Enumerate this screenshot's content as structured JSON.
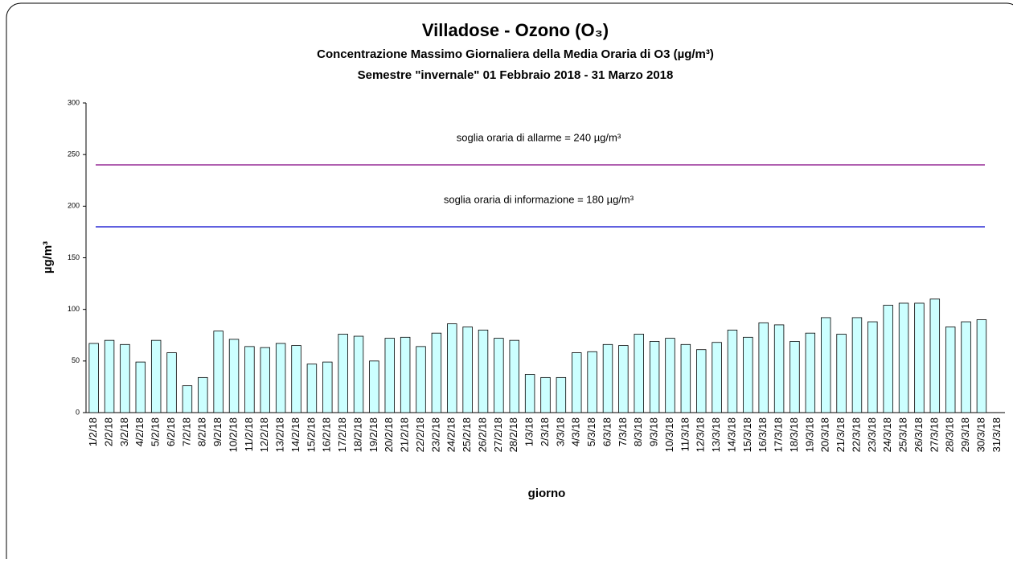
{
  "chart_data": {
    "type": "bar",
    "title": "Villadose - Ozono (O₃)",
    "subtitle": "Concentrazione  Massimo Giornaliera della Media Oraria di O3 (µg/m³)",
    "subtitle2": "Semestre \"invernale\" 01 Febbraio 2018 - 31 Marzo 2018",
    "y_label": "µg/m³",
    "x_label": "giorno",
    "categories": [
      "1/2/18",
      "2/2/18",
      "3/2/18",
      "4/2/18",
      "5/2/18",
      "6/2/18",
      "7/2/18",
      "8/2/18",
      "9/2/18",
      "10/2/18",
      "11/2/18",
      "12/2/18",
      "13/2/18",
      "14/2/18",
      "15/2/18",
      "16/2/18",
      "17/2/18",
      "18/2/18",
      "19/2/18",
      "20/2/18",
      "21/2/18",
      "22/2/18",
      "23/2/18",
      "24/2/18",
      "25/2/18",
      "26/2/18",
      "27/2/18",
      "28/2/18",
      "1/3/18",
      "2/3/18",
      "3/3/18",
      "4/3/18",
      "5/3/18",
      "6/3/18",
      "7/3/18",
      "8/3/18",
      "9/3/18",
      "10/3/18",
      "11/3/18",
      "12/3/18",
      "13/3/18",
      "14/3/18",
      "15/3/18",
      "16/3/18",
      "17/3/18",
      "18/3/18",
      "19/3/18",
      "20/3/18",
      "21/3/18",
      "22/3/18",
      "23/3/18",
      "24/3/18",
      "25/3/18",
      "26/3/18",
      "27/3/18",
      "28/3/18",
      "29/3/18",
      "30/3/18",
      "31/3/18"
    ],
    "values": [
      67,
      70,
      66,
      49,
      70,
      58,
      26,
      34,
      79,
      71,
      64,
      63,
      67,
      65,
      47,
      49,
      76,
      74,
      50,
      72,
      73,
      64,
      77,
      86,
      83,
      80,
      72,
      70,
      37,
      34,
      34,
      58,
      59,
      66,
      65,
      76,
      69,
      72,
      66,
      61,
      68,
      80,
      73,
      87,
      85,
      69,
      77,
      92,
      76,
      92,
      88,
      104,
      106,
      106,
      110,
      83,
      88,
      90,
      null
    ],
    "color": "#ccffff",
    "ylim": [
      0,
      300
    ],
    "yticks": [
      0,
      50,
      100,
      150,
      200,
      250,
      300
    ],
    "thresholds": [
      {
        "label": "soglia oraria di allarme = 240 µg/m³",
        "value": 240,
        "color": "#800080"
      },
      {
        "label": "soglia oraria di informazione = 180 µg/m³",
        "value": 180,
        "color": "#0000cc"
      }
    ]
  }
}
